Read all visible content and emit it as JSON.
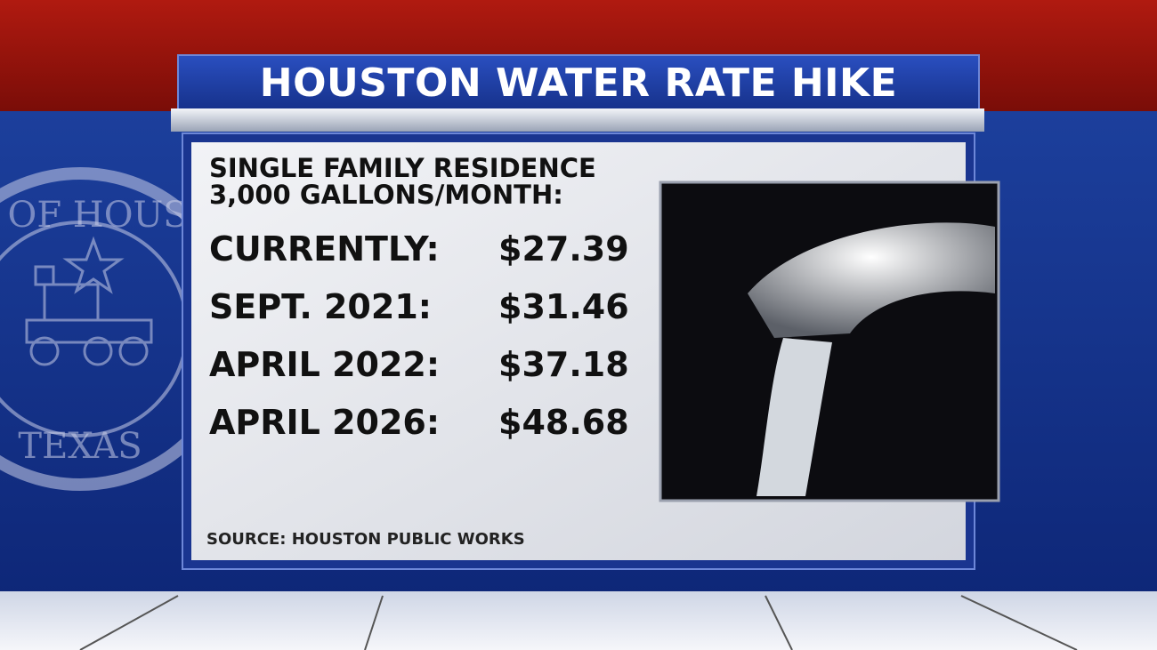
{
  "header": {
    "title": "HOUSTON WATER RATE HIKE"
  },
  "subtitle": [
    "SINGLE FAMILY RESIDENCE",
    "3,000 GALLONS/MONTH:"
  ],
  "rows": [
    {
      "label": "CURRENTLY:",
      "value": "$27.39"
    },
    {
      "label": "SEPT. 2021:",
      "value": "$31.46"
    },
    {
      "label": "APRIL 2022:",
      "value": "$37.18"
    },
    {
      "label": "APRIL 2026:",
      "value": "$48.68"
    }
  ],
  "source": "SOURCE: HOUSTON PUBLIC WORKS",
  "seal": {
    "top": "Y OF HOUS",
    "bottom": "TEXAS"
  }
}
